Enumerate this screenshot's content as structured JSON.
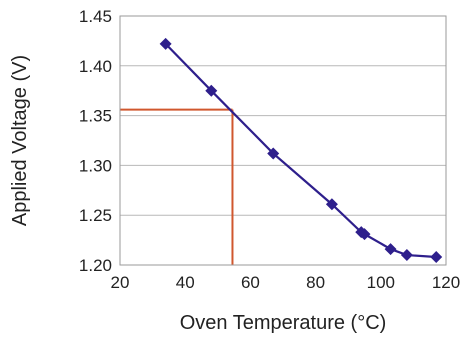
{
  "chart_data": {
    "type": "line",
    "xlabel": "Oven Temperature (°C)",
    "ylabel": "Applied Voltage (V)",
    "xlim": [
      20,
      120
    ],
    "ylim": [
      1.2,
      1.45
    ],
    "x_ticks": [
      20,
      40,
      60,
      80,
      100,
      120
    ],
    "x_tick_labels": [
      "20",
      "40",
      "60",
      "80",
      "100",
      "120"
    ],
    "y_ticks": [
      1.2,
      1.25,
      1.3,
      1.35,
      1.4,
      1.45
    ],
    "y_tick_labels": [
      "1.20",
      "1.25",
      "1.30",
      "1.35",
      "1.40",
      "1.45"
    ],
    "grid": "horizontal",
    "series": [
      {
        "color": "#2e1f8c",
        "marker": "diamond",
        "x": [
          34,
          48,
          67,
          85,
          94,
          95,
          103,
          108,
          117
        ],
        "y": [
          1.422,
          1.375,
          1.312,
          1.261,
          1.233,
          1.231,
          1.216,
          1.21,
          1.208
        ]
      }
    ],
    "reference": {
      "color": "#d0572e",
      "x": 54.5,
      "y": 1.356
    }
  }
}
